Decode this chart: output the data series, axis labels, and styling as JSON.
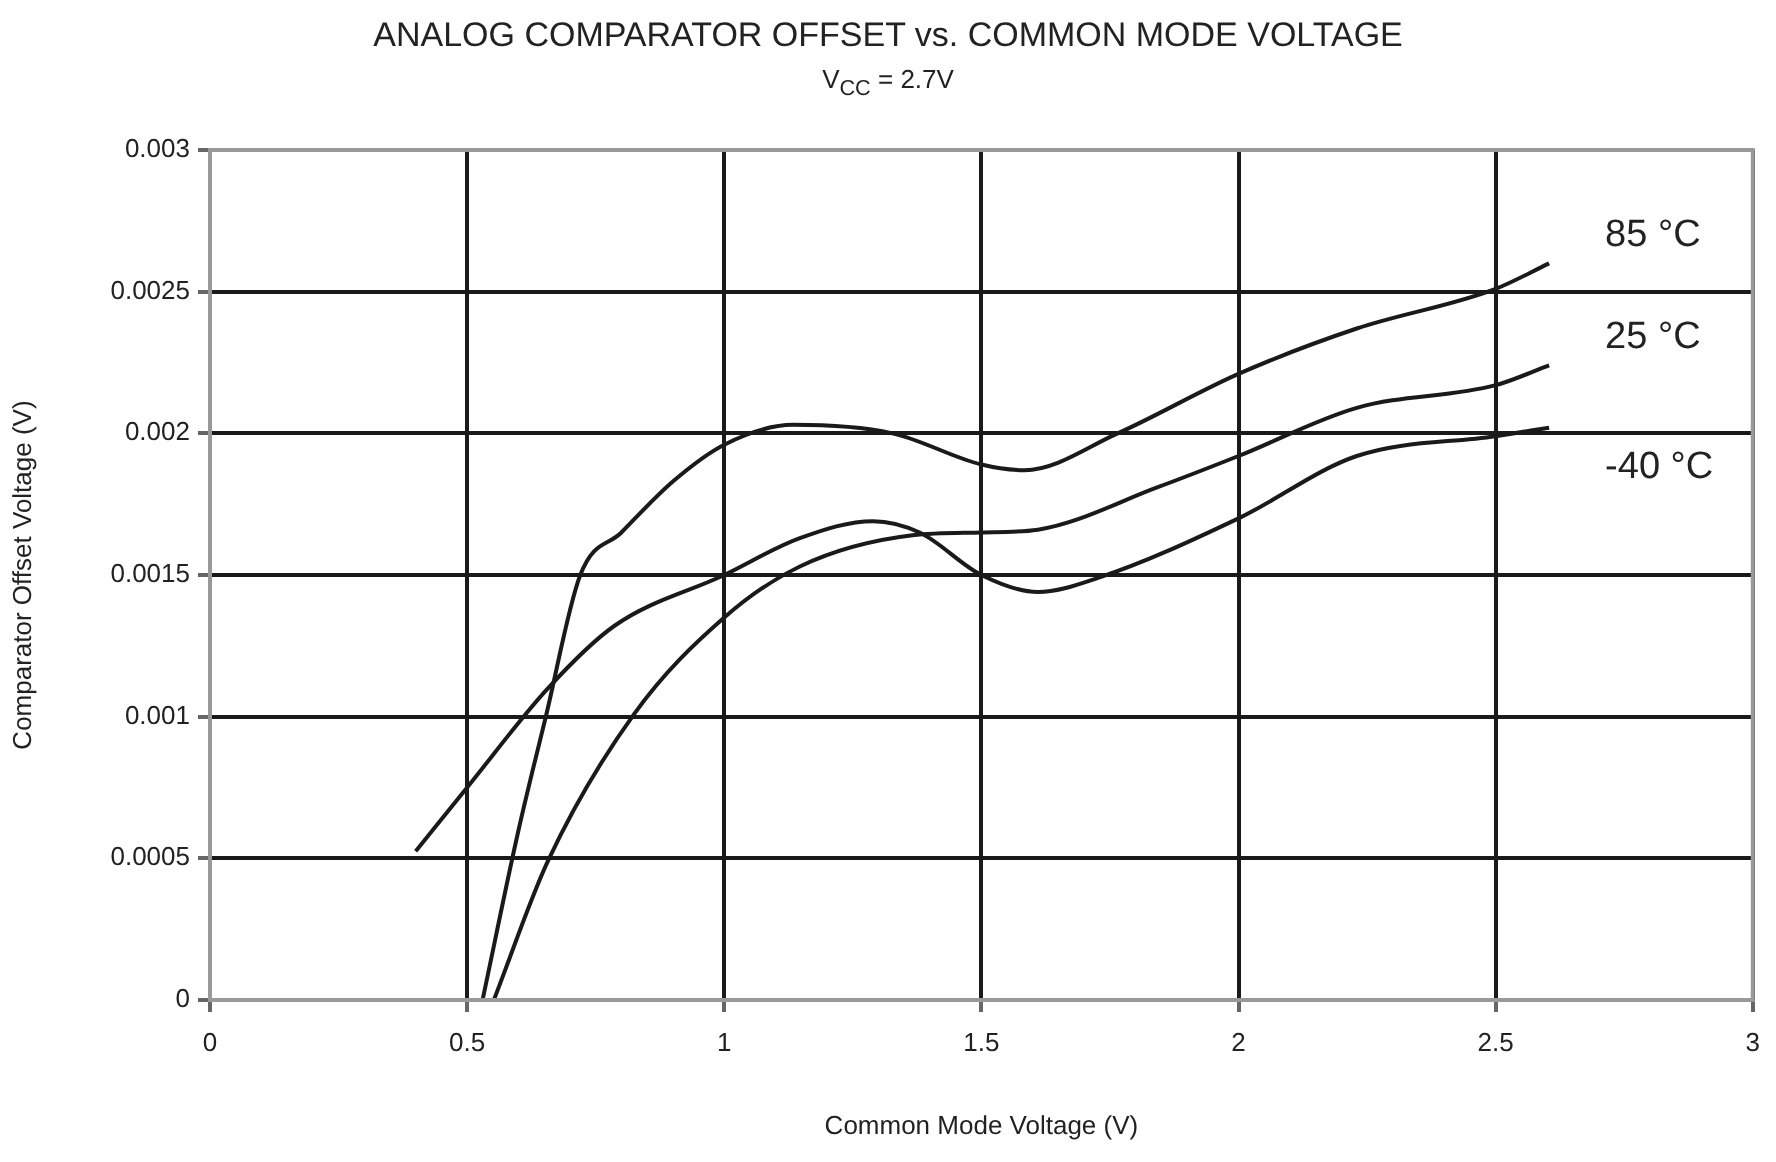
{
  "chart_data": {
    "type": "line",
    "title": "ANALOG COMPARATOR OFFSET vs. COMMON MODE VOLTAGE",
    "subtitle": "V$_{CC}$ = 2.7V",
    "xlabel": "Common Mode Voltage (V)",
    "ylabel": "Comparator Offset Voltage (V)",
    "xlim": [
      0,
      3
    ],
    "xticks": [
      0,
      0.5,
      1,
      1.5,
      2,
      2.5,
      3
    ],
    "ylim": [
      0,
      0.003
    ],
    "yticks": [
      0,
      0.0005,
      0.001,
      0.0015,
      0.002,
      0.0025,
      0.003
    ],
    "grid": true,
    "legend": false,
    "marker": "none",
    "line_style": "solid",
    "series": [
      {
        "name": "85 °C",
        "color": "#1a1a1a",
        "x": [
          0.53,
          0.6,
          0.653,
          0.72,
          0.8,
          0.9,
          1.0,
          1.134,
          1.327,
          1.5,
          1.584,
          1.765,
          2.0,
          2.23,
          2.5,
          2.604
        ],
        "values": [
          0,
          0.0006,
          0.001,
          0.0015,
          0.00165,
          0.00183,
          0.00196,
          0.00203,
          0.002,
          0.00189,
          0.00187,
          0.002,
          0.00221,
          0.00237,
          0.00251,
          0.0026
        ]
      },
      {
        "name": "25 °C",
        "color": "#1a1a1a",
        "x": [
          0.552,
          0.657,
          0.825,
          1.0,
          1.147,
          1.366,
          1.5,
          1.61,
          1.843,
          2.0,
          2.23,
          2.5,
          2.604
        ],
        "values": [
          0,
          0.00049,
          0.00101,
          0.00135,
          0.00153,
          0.00164,
          0.00165,
          0.00166,
          0.00181,
          0.00192,
          0.00209,
          0.00217,
          0.00224
        ]
      },
      {
        "name": "-40 °C",
        "color": "#1a1a1a",
        "x": [
          0.4,
          0.5,
          0.657,
          0.786,
          1.0,
          1.147,
          1.289,
          1.38,
          1.5,
          1.61,
          1.727,
          2.0,
          2.23,
          2.5,
          2.604
        ],
        "values": [
          0.000525,
          0.00075,
          0.0011,
          0.00132,
          0.0015,
          0.00163,
          0.00169,
          0.00165,
          0.0015,
          0.00144,
          0.00149,
          0.0017,
          0.00192,
          0.00199,
          0.00202
        ]
      }
    ]
  }
}
